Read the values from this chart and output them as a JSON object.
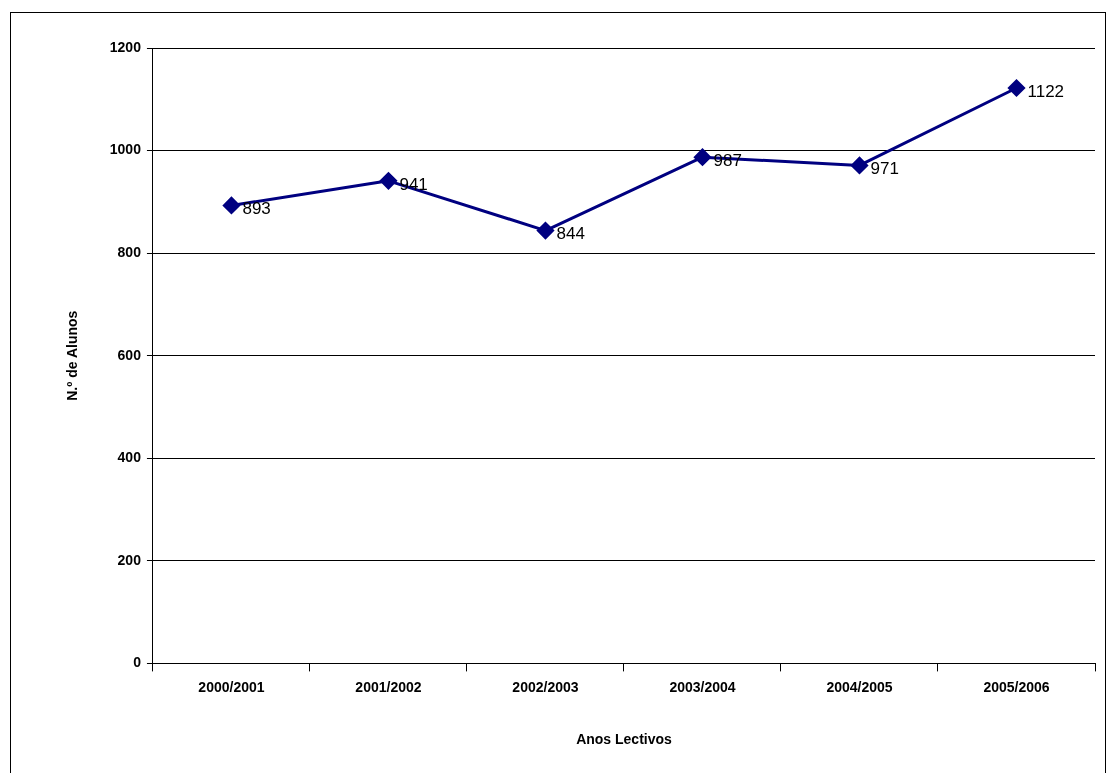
{
  "chart_data": {
    "type": "line",
    "xlabel": "Anos Lectivos",
    "ylabel": "N.º de Alunos",
    "categories": [
      "2000/2001",
      "2001/2002",
      "2002/2003",
      "2003/2004",
      "2004/2005",
      "2005/2006"
    ],
    "series": [
      {
        "color": "#000080",
        "values": [
          893,
          941,
          844,
          987,
          971,
          1122
        ]
      }
    ],
    "ylim": [
      0,
      1200
    ],
    "yticks": [
      0,
      200,
      400,
      600,
      800,
      1000,
      1200
    ],
    "grid": "y",
    "legend": false,
    "marker": "diamond",
    "line_style": "solid",
    "data_labels": true
  }
}
